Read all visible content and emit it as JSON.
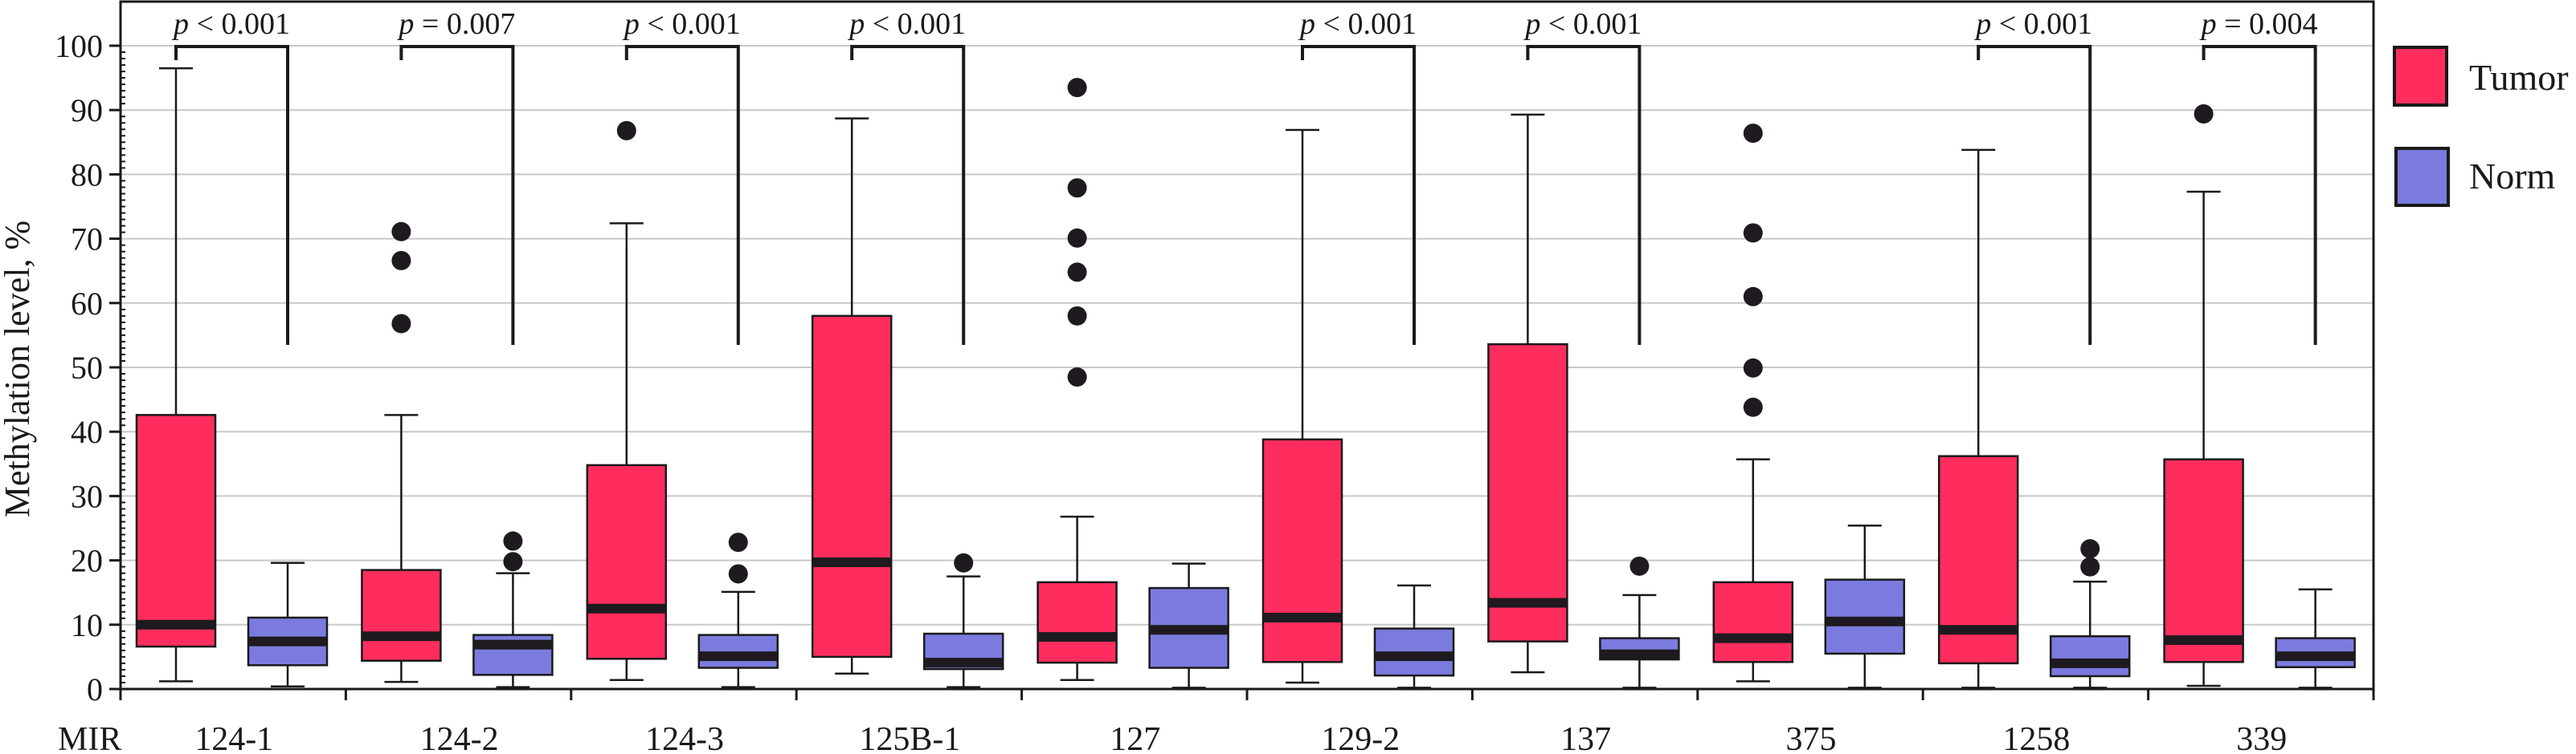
{
  "chart_data": {
    "type": "box",
    "ylabel": "Methylation level, %",
    "xlabel_prefix": "MIR",
    "ylim": [
      0,
      100
    ],
    "yticks": [
      0,
      10,
      20,
      30,
      40,
      50,
      60,
      70,
      80,
      90,
      100
    ],
    "grid": true,
    "legend_position": "right",
    "series": [
      {
        "name": "Tumor",
        "color": "#ff2d5e"
      },
      {
        "name": "Norm",
        "color": "#7b7bdf"
      }
    ],
    "categories": [
      "124-1",
      "124-2",
      "124-3",
      "125B-1",
      "127",
      "129-2",
      "137",
      "375",
      "1258",
      "339"
    ],
    "groups": [
      {
        "label": "124-1",
        "p_value": "p < 0.001",
        "tumor": {
          "min": 1.2,
          "q1": 6.6,
          "median": 10.0,
          "q3": 42.6,
          "max": 96.5,
          "outliers": []
        },
        "norm": {
          "min": 0.4,
          "q1": 3.7,
          "median": 7.4,
          "q3": 11.1,
          "max": 19.6,
          "outliers": []
        }
      },
      {
        "label": "124-2",
        "p_value": "p = 0.007",
        "tumor": {
          "min": 1.1,
          "q1": 4.4,
          "median": 8.2,
          "q3": 18.5,
          "max": 42.6,
          "outliers": [
            71.1,
            66.6,
            56.8
          ]
        },
        "norm": {
          "min": 0.3,
          "q1": 2.2,
          "median": 6.9,
          "q3": 8.4,
          "max": 18.0,
          "outliers": [
            23.0,
            19.8
          ]
        }
      },
      {
        "label": "124-3",
        "p_value": "p < 0.001",
        "tumor": {
          "min": 1.4,
          "q1": 4.7,
          "median": 12.5,
          "q3": 34.8,
          "max": 72.4,
          "outliers": [
            86.8
          ]
        },
        "norm": {
          "min": 0.3,
          "q1": 3.3,
          "median": 5.1,
          "q3": 8.4,
          "max": 15.1,
          "outliers": [
            22.8,
            17.9
          ]
        }
      },
      {
        "label": "125B-1",
        "p_value": "p < 0.001",
        "tumor": {
          "min": 2.4,
          "q1": 5.0,
          "median": 19.7,
          "q3": 58.0,
          "max": 88.7,
          "outliers": []
        },
        "norm": {
          "min": 0.3,
          "q1": 3.1,
          "median": 4.1,
          "q3": 8.6,
          "max": 17.5,
          "outliers": [
            19.6
          ]
        }
      },
      {
        "label": "127",
        "p_value": null,
        "tumor": {
          "min": 1.4,
          "q1": 4.1,
          "median": 8.1,
          "q3": 16.6,
          "max": 26.8,
          "outliers": [
            93.5,
            77.9,
            70.1,
            64.8,
            58.0,
            48.5
          ]
        },
        "norm": {
          "min": 0.2,
          "q1": 3.3,
          "median": 9.2,
          "q3": 15.7,
          "max": 19.5,
          "outliers": []
        }
      },
      {
        "label": "129-2",
        "p_value": "p < 0.001",
        "tumor": {
          "min": 1.0,
          "q1": 4.2,
          "median": 11.1,
          "q3": 38.8,
          "max": 86.9,
          "outliers": []
        },
        "norm": {
          "min": 0.2,
          "q1": 2.1,
          "median": 5.1,
          "q3": 9.4,
          "max": 16.1,
          "outliers": []
        }
      },
      {
        "label": "137",
        "p_value": "p < 0.001",
        "tumor": {
          "min": 2.6,
          "q1": 7.4,
          "median": 13.4,
          "q3": 53.6,
          "max": 89.3,
          "outliers": []
        },
        "norm": {
          "min": 0.2,
          "q1": 4.6,
          "median": 5.4,
          "q3": 7.9,
          "max": 14.6,
          "outliers": [
            19.1
          ]
        }
      },
      {
        "label": "375",
        "p_value": null,
        "tumor": {
          "min": 1.2,
          "q1": 4.2,
          "median": 7.9,
          "q3": 16.6,
          "max": 35.7,
          "outliers": [
            86.4,
            70.9,
            61.0,
            49.9,
            43.8
          ]
        },
        "norm": {
          "min": 0.2,
          "q1": 5.5,
          "median": 10.5,
          "q3": 17.0,
          "max": 25.4,
          "outliers": []
        }
      },
      {
        "label": "1258",
        "p_value": "p < 0.001",
        "tumor": {
          "min": 0.2,
          "q1": 4.0,
          "median": 9.2,
          "q3": 36.2,
          "max": 83.8,
          "outliers": []
        },
        "norm": {
          "min": 0.2,
          "q1": 2.0,
          "median": 4.0,
          "q3": 8.2,
          "max": 16.7,
          "outliers": [
            21.8,
            19.0
          ]
        }
      },
      {
        "label": "339",
        "p_value": "p = 0.004",
        "tumor": {
          "min": 0.5,
          "q1": 4.2,
          "median": 7.6,
          "q3": 35.7,
          "max": 77.3,
          "outliers": [
            89.4
          ]
        },
        "norm": {
          "min": 0.2,
          "q1": 3.4,
          "median": 5.1,
          "q3": 7.9,
          "max": 15.5,
          "outliers": []
        }
      }
    ]
  }
}
